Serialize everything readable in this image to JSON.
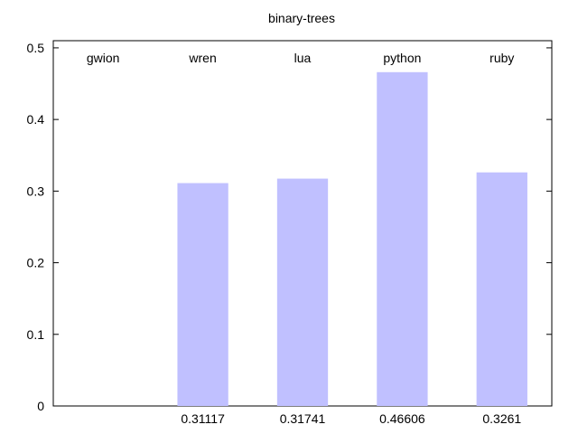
{
  "chart_data": {
    "type": "bar",
    "title": "binary-trees",
    "xlabel": "",
    "ylabel": "",
    "categories": [
      "gwion",
      "wren",
      "lua",
      "python",
      "ruby"
    ],
    "values": [
      null,
      0.31117,
      0.31741,
      0.46606,
      0.3261
    ],
    "value_labels": [
      "",
      "0.31117",
      "0.31741",
      "0.46606",
      "0.3261"
    ],
    "ylim": [
      0,
      0.51
    ],
    "yticks": [
      0,
      0.1,
      0.2,
      0.3,
      0.4,
      0.5
    ],
    "ytick_labels": [
      "0",
      "0.1",
      "0.2",
      "0.3",
      "0.4",
      "0.5"
    ],
    "category_labels_position": "top",
    "value_labels_position": "bottom",
    "grid": false,
    "legend": "none",
    "bar_color": "#c0c0ff"
  }
}
